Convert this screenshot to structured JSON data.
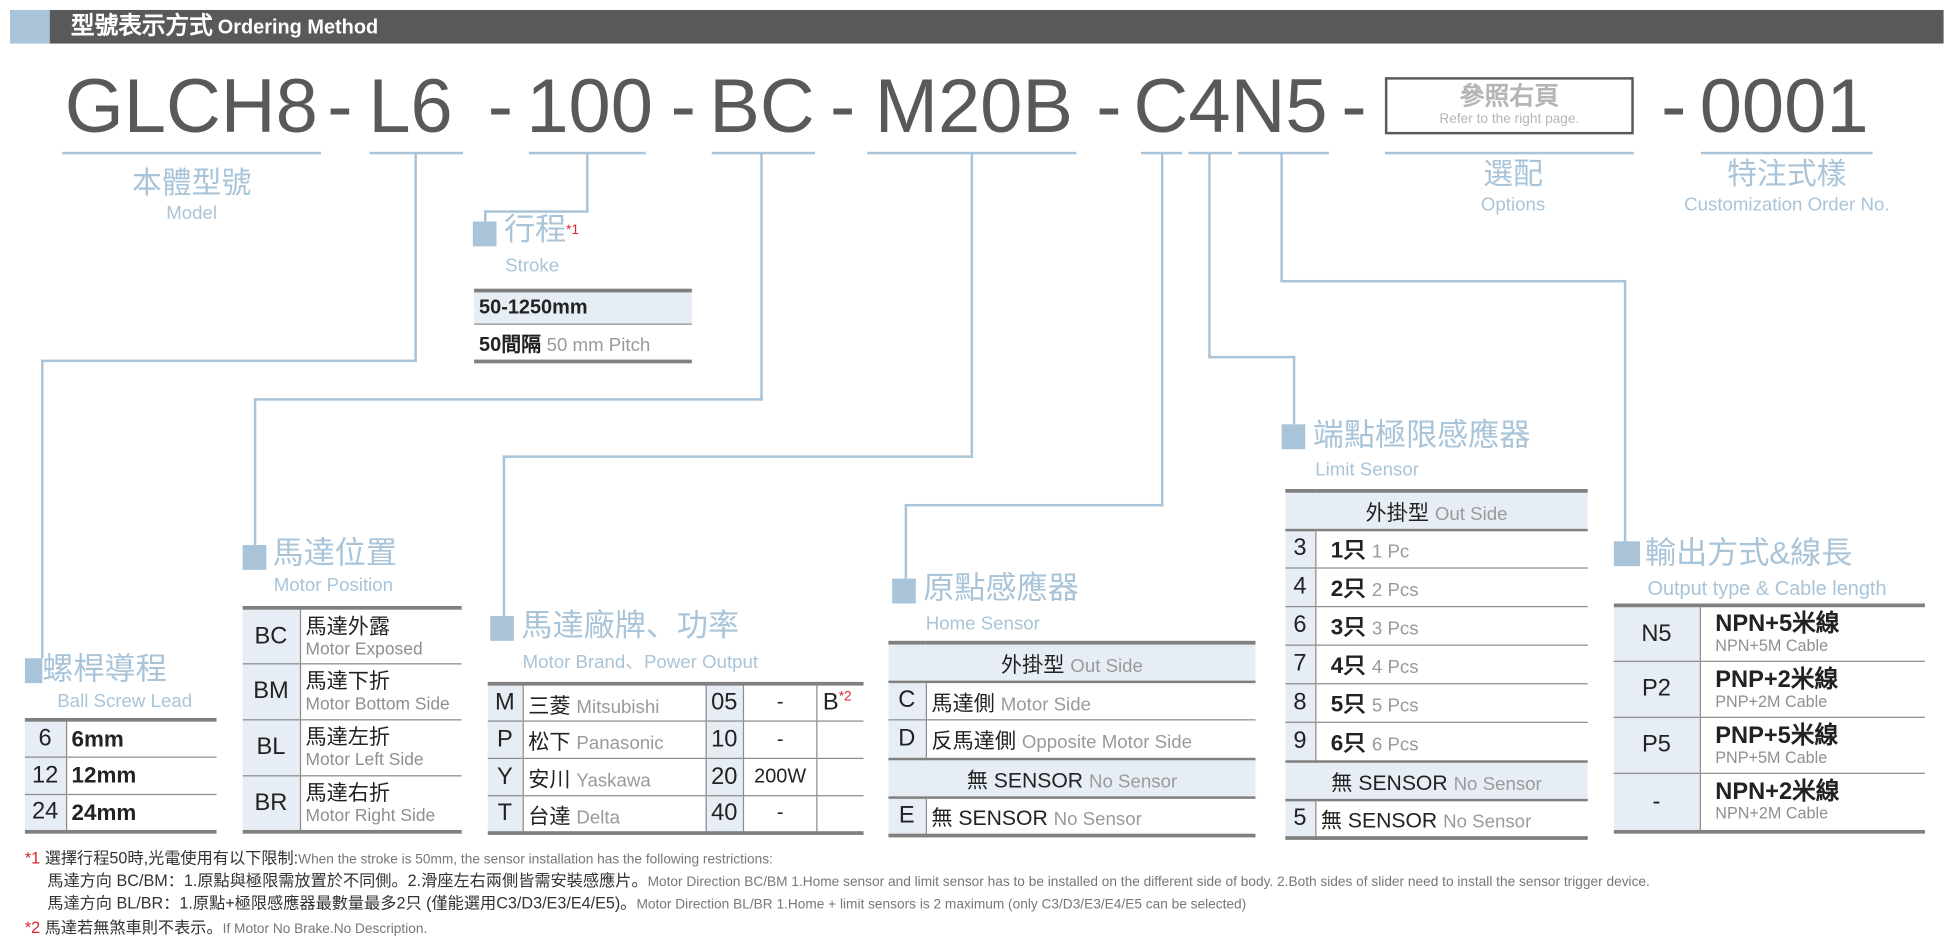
{
  "header": {
    "title_zh": "型號表示方式",
    "title_en": "Ordering Method"
  },
  "code": {
    "segments": [
      "GLCH8",
      "-",
      "L6",
      "-",
      "100",
      "-",
      "BC",
      "-",
      "M20B",
      "-",
      "C4N5",
      "-",
      "-",
      "0001"
    ],
    "options_box": {
      "zh": "參照右頁",
      "en": "Refer to the right page."
    }
  },
  "labels": {
    "model": {
      "zh": "本體型號",
      "en": "Model"
    },
    "options": {
      "zh": "選配",
      "en": "Options"
    },
    "custom": {
      "zh": "特注式樣",
      "en": "Customization Order No."
    }
  },
  "stroke": {
    "zh": "行程",
    "sup": "*1",
    "en": "Stroke",
    "rows": [
      {
        "value": "50-1250mm"
      },
      {
        "value": "50間隔",
        "en": "50 mm Pitch"
      }
    ]
  },
  "lead": {
    "zh": "螺桿導程",
    "en": "Ball Screw Lead",
    "rows": [
      {
        "code": "6",
        "value": "6mm"
      },
      {
        "code": "12",
        "value": "12mm"
      },
      {
        "code": "24",
        "value": "24mm"
      }
    ]
  },
  "motor_position": {
    "zh": "馬達位置",
    "en": "Motor Position",
    "rows": [
      {
        "code": "BC",
        "zh": "馬達外露",
        "en": "Motor Exposed"
      },
      {
        "code": "BM",
        "zh": "馬達下折",
        "en": "Motor Bottom Side"
      },
      {
        "code": "BL",
        "zh": "馬達左折",
        "en": "Motor Left Side"
      },
      {
        "code": "BR",
        "zh": "馬達右折",
        "en": "Motor Right Side"
      }
    ]
  },
  "motor_brand": {
    "zh": "馬達廠牌、功率",
    "en": "Motor Brand、Power Output",
    "rows": [
      {
        "code": "M",
        "zh": "三菱",
        "en": "Mitsubishi",
        "power_code": "05",
        "power": "-",
        "brake": "B",
        "brake_sup": "*2"
      },
      {
        "code": "P",
        "zh": "松下",
        "en": "Panasonic",
        "power_code": "10",
        "power": "-"
      },
      {
        "code": "Y",
        "zh": "安川",
        "en": "Yaskawa",
        "power_code": "20",
        "power": "200W"
      },
      {
        "code": "T",
        "zh": "台達",
        "en": "Delta",
        "power_code": "40",
        "power": "-"
      }
    ]
  },
  "home_sensor": {
    "zh": "原點感應器",
    "en": "Home Sensor",
    "header_zh": "外掛型",
    "header_en": "Out Side",
    "rows": [
      {
        "code": "C",
        "zh": "馬達側",
        "en": "Motor Side"
      },
      {
        "code": "D",
        "zh": "反馬達側",
        "en": "Opposite Motor Side"
      }
    ],
    "none_header": {
      "zh": "無 SENSOR",
      "en": "No Sensor"
    },
    "none_row": {
      "code": "E",
      "zh": "無 SENSOR",
      "en": "No Sensor"
    }
  },
  "limit_sensor": {
    "zh": "端點極限感應器",
    "en": "Limit Sensor",
    "header_zh": "外掛型",
    "header_en": "Out Side",
    "rows": [
      {
        "code": "3",
        "zh": "1只",
        "en": "1 Pc"
      },
      {
        "code": "4",
        "zh": "2只",
        "en": "2 Pcs"
      },
      {
        "code": "6",
        "zh": "3只",
        "en": "3 Pcs"
      },
      {
        "code": "7",
        "zh": "4只",
        "en": "4 Pcs"
      },
      {
        "code": "8",
        "zh": "5只",
        "en": "5 Pcs"
      },
      {
        "code": "9",
        "zh": "6只",
        "en": "6 Pcs"
      }
    ],
    "none_header": {
      "zh": "無 SENSOR",
      "en": "No Sensor"
    },
    "none_row": {
      "code": "5",
      "zh": "無 SENSOR",
      "en": "No Sensor"
    }
  },
  "output": {
    "zh": "輸出方式&線長",
    "en": "Output type & Cable length",
    "rows": [
      {
        "code": "N5",
        "zh": "NPN+5米線",
        "en": "NPN+5M Cable"
      },
      {
        "code": "P2",
        "zh": "PNP+2米線",
        "en": "PNP+2M Cable"
      },
      {
        "code": "P5",
        "zh": "PNP+5米線",
        "en": "PNP+5M Cable"
      },
      {
        "code": "-",
        "zh": "NPN+2米線",
        "en": "NPN+2M Cable"
      }
    ]
  },
  "footnotes": [
    {
      "mark": "*1",
      "zh": "選擇行程50時,光電使用有以下限制:",
      "en": "When the stroke is 50mm, the sensor installation has  the following restrictions:"
    },
    {
      "mark": "",
      "zh": "馬達方向 BC/BM：1.原點與極限需放置於不同側。2.滑座左右兩側皆需安裝感應片。",
      "en": "Motor Direction BC/BM 1.Home sensor and limit sensor has to be installed on the different side of body.  2.Both sides of slider need to install the sensor trigger device."
    },
    {
      "mark": "",
      "zh": "馬達方向 BL/BR：1.原點+極限感應器最數量最多2只 (僅能選用C3/D3/E3/E4/E5)。",
      "en": "Motor Direction BL/BR 1.Home + limit sensors is 2 maximum (only C3/D3/E3/E4/E5 can be selected)"
    },
    {
      "mark": "*2",
      "zh": "馬達若無煞車則不表示。",
      "en": "If Motor No Brake.No Description."
    }
  ],
  "colors": {
    "accent": "#a9c4d8",
    "header_bar": "#58595b",
    "table_bg": "#e6edf4",
    "note_red": "#d9262c"
  }
}
